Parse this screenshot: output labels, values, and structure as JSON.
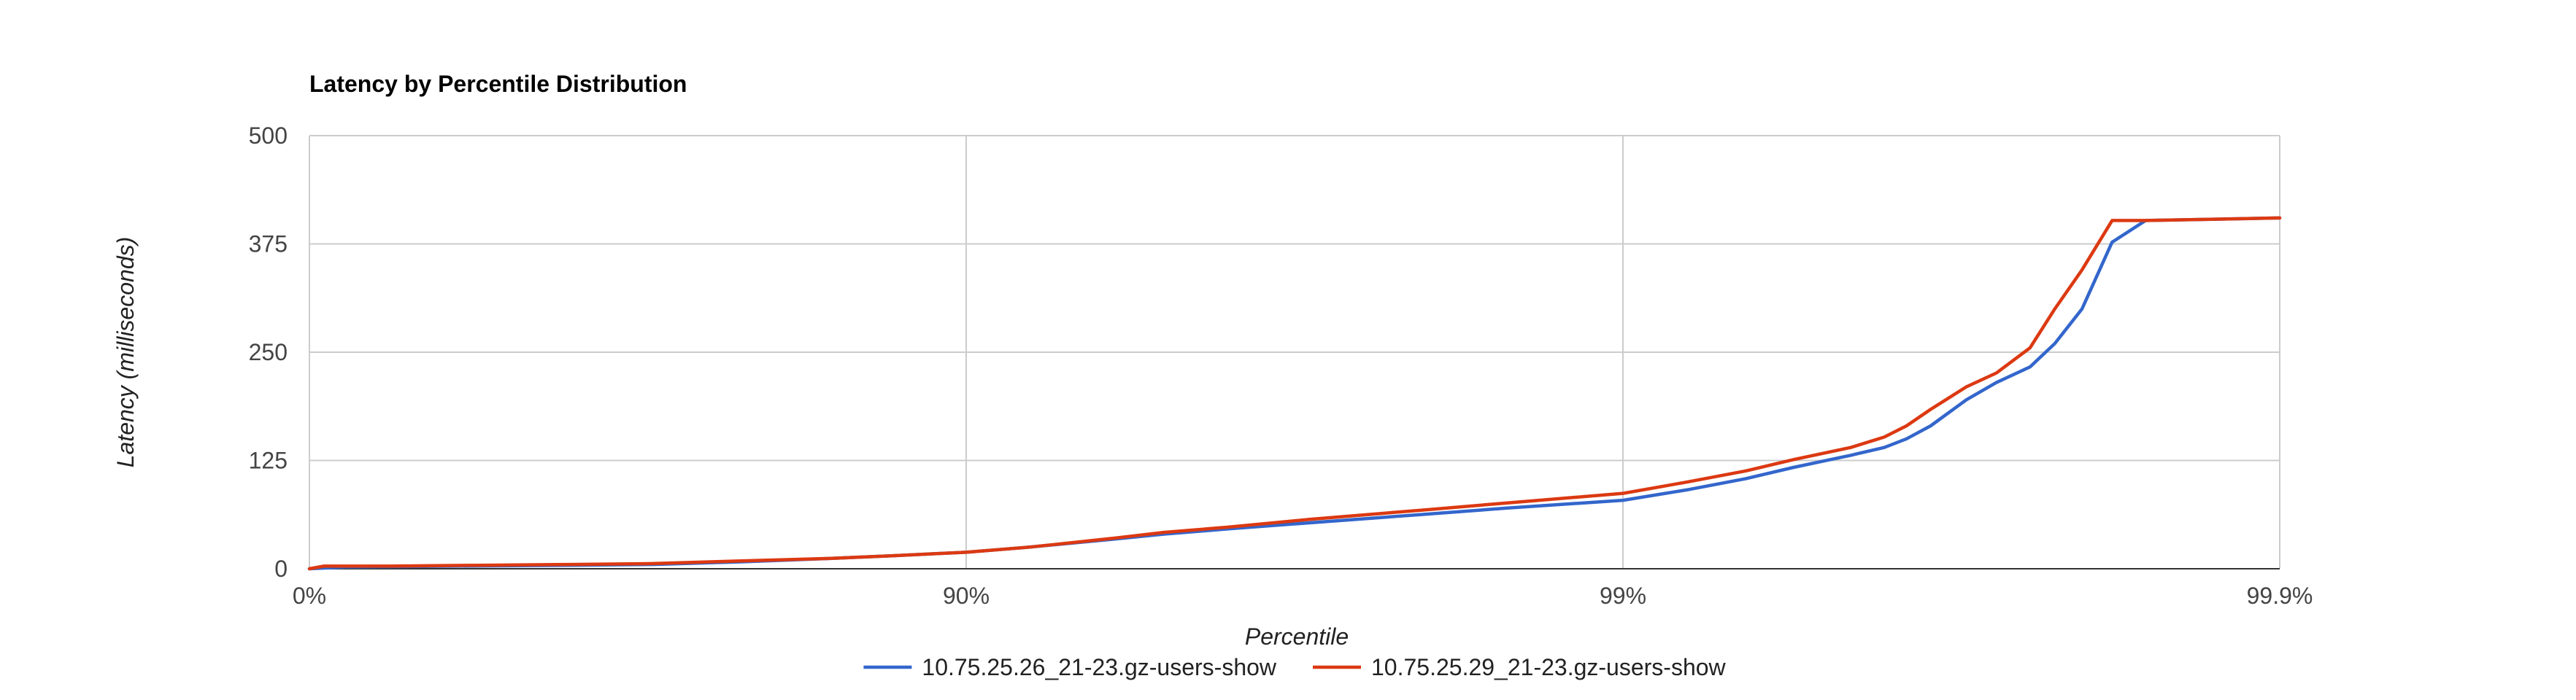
{
  "chart_data": {
    "type": "line",
    "title": "Latency by Percentile Distribution",
    "xlabel": "Percentile",
    "ylabel": "Latency (milliseconds)",
    "x_scale": "log-percentile",
    "x_ticks": [
      {
        "label": "0%",
        "value": 0
      },
      {
        "label": "90%",
        "value": 90
      },
      {
        "label": "99%",
        "value": 99
      },
      {
        "label": "99.9%",
        "value": 99.9
      }
    ],
    "ylim": [
      0,
      500
    ],
    "y_ticks": [
      0,
      125,
      250,
      375,
      500
    ],
    "grid": true,
    "legend_position": "bottom",
    "series": [
      {
        "name": "10.75.25.26_21-23.gz-users-show",
        "color": "#3366cc",
        "points": [
          {
            "x": 0,
            "y": 0
          },
          {
            "x": 12.0,
            "y": 2
          },
          {
            "x": 40.0,
            "y": 3
          },
          {
            "x": 60.0,
            "y": 4
          },
          {
            "x": 70.0,
            "y": 5
          },
          {
            "x": 78.0,
            "y": 8
          },
          {
            "x": 84.0,
            "y": 12
          },
          {
            "x": 87.0,
            "y": 15
          },
          {
            "x": 90.0,
            "y": 19
          },
          {
            "x": 92.0,
            "y": 25
          },
          {
            "x": 94.0,
            "y": 34
          },
          {
            "x": 95.0,
            "y": 40
          },
          {
            "x": 96.0,
            "y": 46
          },
          {
            "x": 97.0,
            "y": 53
          },
          {
            "x": 98.0,
            "y": 63
          },
          {
            "x": 98.5,
            "y": 70
          },
          {
            "x": 99.0,
            "y": 79
          },
          {
            "x": 99.2,
            "y": 91
          },
          {
            "x": 99.35,
            "y": 104
          },
          {
            "x": 99.45,
            "y": 117
          },
          {
            "x": 99.55,
            "y": 131
          },
          {
            "x": 99.6,
            "y": 140
          },
          {
            "x": 99.63,
            "y": 150
          },
          {
            "x": 99.66,
            "y": 165
          },
          {
            "x": 99.7,
            "y": 195
          },
          {
            "x": 99.73,
            "y": 215
          },
          {
            "x": 99.76,
            "y": 233
          },
          {
            "x": 99.78,
            "y": 260
          },
          {
            "x": 99.8,
            "y": 300
          },
          {
            "x": 99.82,
            "y": 377
          },
          {
            "x": 99.84,
            "y": 402
          },
          {
            "x": 99.9,
            "y": 405
          }
        ]
      },
      {
        "name": "10.75.25.29_21-23.gz-users-show",
        "color": "#dc3912",
        "points": [
          {
            "x": 0,
            "y": 0
          },
          {
            "x": 5.0,
            "y": 3
          },
          {
            "x": 25.0,
            "y": 3
          },
          {
            "x": 45.0,
            "y": 4
          },
          {
            "x": 60.0,
            "y": 5
          },
          {
            "x": 70.0,
            "y": 6
          },
          {
            "x": 78.0,
            "y": 9
          },
          {
            "x": 84.0,
            "y": 12
          },
          {
            "x": 87.0,
            "y": 15
          },
          {
            "x": 90.0,
            "y": 19
          },
          {
            "x": 92.0,
            "y": 25
          },
          {
            "x": 94.0,
            "y": 35
          },
          {
            "x": 95.0,
            "y": 42
          },
          {
            "x": 96.0,
            "y": 48
          },
          {
            "x": 97.0,
            "y": 57
          },
          {
            "x": 98.0,
            "y": 68
          },
          {
            "x": 98.5,
            "y": 76
          },
          {
            "x": 99.0,
            "y": 87
          },
          {
            "x": 99.2,
            "y": 100
          },
          {
            "x": 99.35,
            "y": 113
          },
          {
            "x": 99.45,
            "y": 126
          },
          {
            "x": 99.55,
            "y": 140
          },
          {
            "x": 99.6,
            "y": 152
          },
          {
            "x": 99.63,
            "y": 165
          },
          {
            "x": 99.66,
            "y": 184
          },
          {
            "x": 99.7,
            "y": 210
          },
          {
            "x": 99.73,
            "y": 226
          },
          {
            "x": 99.76,
            "y": 255
          },
          {
            "x": 99.78,
            "y": 300
          },
          {
            "x": 99.8,
            "y": 345
          },
          {
            "x": 99.82,
            "y": 402
          },
          {
            "x": 99.84,
            "y": 402
          },
          {
            "x": 99.9,
            "y": 405
          }
        ]
      }
    ]
  }
}
